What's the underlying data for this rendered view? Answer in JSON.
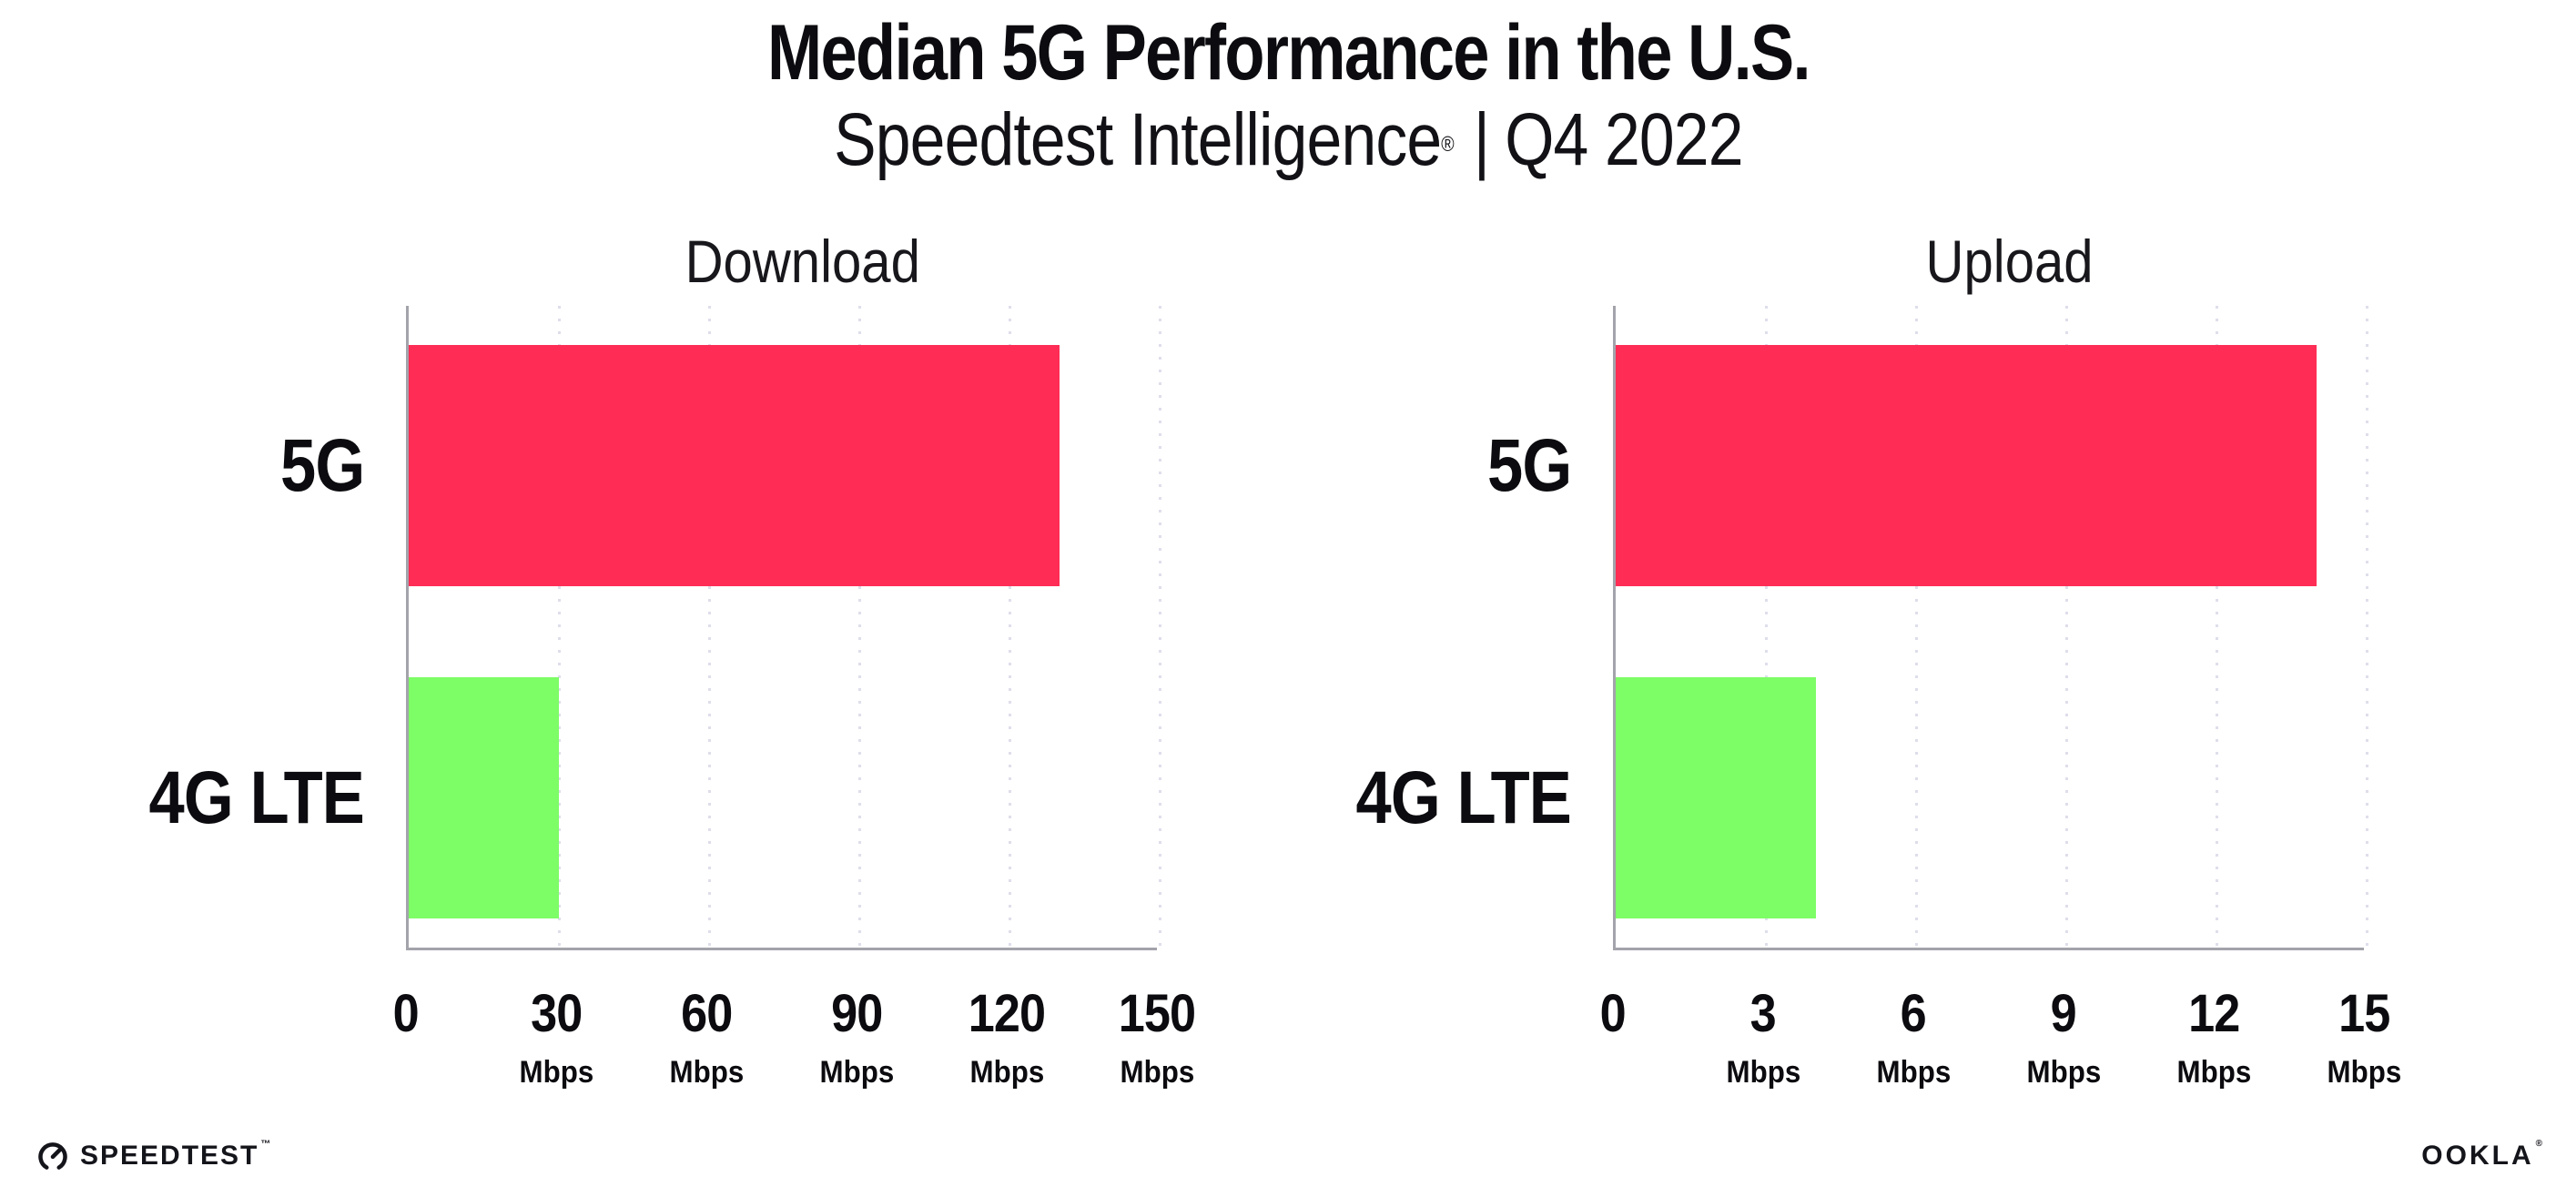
{
  "header": {
    "title": "Median 5G Performance in the U.S.",
    "subtitle_brand": "Speedtest Intelligence",
    "subtitle_reg": "®",
    "subtitle_sep": "|",
    "subtitle_period": "Q4 2022"
  },
  "colors": {
    "bar_5g": "#FF2D55",
    "bar_4g_lte": "#7DFD66",
    "axis": "#A3A3AB",
    "gridline": "#DEDEEB",
    "text": "#0C0C10",
    "background": "#FFFFFF"
  },
  "chart_data": [
    {
      "type": "bar",
      "orientation": "horizontal",
      "title": "Download",
      "categories": [
        "5G",
        "4G LTE"
      ],
      "values": [
        130,
        30
      ],
      "unit": "Mbps",
      "xlim": [
        0,
        150
      ],
      "xticks": [
        0,
        30,
        60,
        90,
        120,
        150
      ],
      "colors": [
        "#FF2D55",
        "#7DFD66"
      ],
      "grid": "dotted vertical gridlines at each tick",
      "legend": "none",
      "xlabel": "",
      "ylabel": ""
    },
    {
      "type": "bar",
      "orientation": "horizontal",
      "title": "Upload",
      "categories": [
        "5G",
        "4G LTE"
      ],
      "values": [
        14,
        4
      ],
      "unit": "Mbps",
      "xlim": [
        0,
        15
      ],
      "xticks": [
        0,
        3,
        6,
        9,
        12,
        15
      ],
      "colors": [
        "#FF2D55",
        "#7DFD66"
      ],
      "grid": "dotted vertical gridlines at each tick",
      "legend": "none",
      "xlabel": "",
      "ylabel": ""
    }
  ],
  "footer": {
    "speedtest": {
      "label": "SPEEDTEST",
      "tm": "™"
    },
    "ookla": {
      "label": "OOKLA",
      "reg": "®"
    }
  }
}
